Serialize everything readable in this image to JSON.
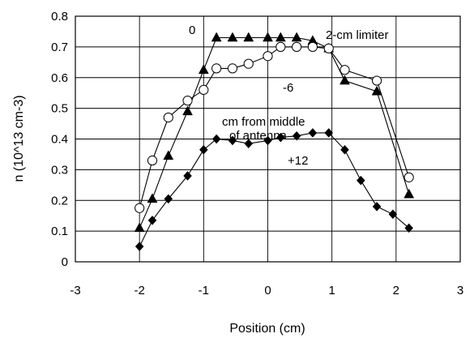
{
  "chart_data": {
    "type": "scatter",
    "title": "",
    "xlabel": "Position (cm)",
    "ylabel": "n (10^13 cm-3)",
    "xlim": [
      -3,
      3
    ],
    "ylim": [
      0,
      0.8
    ],
    "xticks": [
      "-3",
      "-2",
      "-1",
      "0",
      "1",
      "2",
      "3"
    ],
    "yticks": [
      "0",
      "0.1",
      "0.2",
      "0.3",
      "0.4",
      "0.5",
      "0.6",
      "0.7",
      "0.8"
    ],
    "grid": true,
    "annotations": {
      "limiter": "2-cm limiter",
      "legend_line1": "cm from middle",
      "legend_line2": "of antenna"
    },
    "series": [
      {
        "name": "0",
        "marker": "triangle",
        "x": [
          -2.0,
          -1.8,
          -1.55,
          -1.25,
          -1.0,
          -0.8,
          -0.55,
          -0.3,
          0.0,
          0.2,
          0.45,
          0.7,
          0.95,
          1.2,
          1.7,
          2.2
        ],
        "y": [
          0.11,
          0.205,
          0.345,
          0.49,
          0.625,
          0.73,
          0.73,
          0.73,
          0.73,
          0.73,
          0.73,
          0.72,
          0.695,
          0.59,
          0.555,
          0.22
        ]
      },
      {
        "name": "-6",
        "marker": "circle",
        "x": [
          -2.0,
          -1.8,
          -1.55,
          -1.25,
          -1.0,
          -0.8,
          -0.55,
          -0.3,
          0.0,
          0.2,
          0.45,
          0.7,
          0.95,
          1.2,
          1.7,
          2.2
        ],
        "y": [
          0.175,
          0.33,
          0.47,
          0.525,
          0.56,
          0.63,
          0.63,
          0.645,
          0.67,
          0.7,
          0.7,
          0.7,
          0.695,
          0.625,
          0.59,
          0.275
        ]
      },
      {
        "name": "+12",
        "marker": "diamond",
        "x": [
          -2.0,
          -1.8,
          -1.55,
          -1.25,
          -1.0,
          -0.8,
          -0.55,
          -0.3,
          0.0,
          0.2,
          0.45,
          0.7,
          0.95,
          1.2,
          1.45,
          1.7,
          1.95,
          2.2
        ],
        "y": [
          0.05,
          0.135,
          0.205,
          0.28,
          0.365,
          0.4,
          0.395,
          0.385,
          0.395,
          0.405,
          0.41,
          0.42,
          0.42,
          0.365,
          0.265,
          0.18,
          0.155,
          0.11
        ]
      }
    ]
  }
}
